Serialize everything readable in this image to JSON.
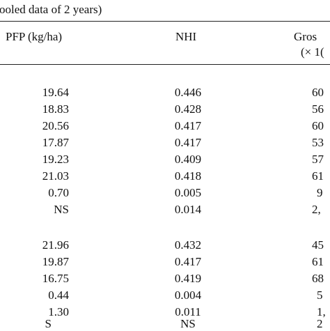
{
  "caption": "ooled data of 2 years)",
  "headers": {
    "pfp": "PFP (kg/ha)",
    "nhi": "NHI",
    "gross_line1": "Gros",
    "gross_line2": "(× 1("
  },
  "rows": [
    {
      "pfp": "19.64",
      "nhi": "0.446",
      "gross": "60"
    },
    {
      "pfp": "18.83",
      "nhi": "0.428",
      "gross": "56"
    },
    {
      "pfp": "20.56",
      "nhi": "0.417",
      "gross": "60"
    },
    {
      "pfp": "17.87",
      "nhi": "0.417",
      "gross": "53"
    },
    {
      "pfp": "19.23",
      "nhi": "0.409",
      "gross": "57"
    },
    {
      "pfp": "21.03",
      "nhi": "0.418",
      "gross": "61"
    },
    {
      "pfp": "0.70",
      "nhi": "0.005",
      "gross": "9"
    },
    {
      "pfp": "NS",
      "nhi": "0.014",
      "gross": "2,"
    },
    {
      "pfp": "21.96",
      "nhi": "0.432",
      "gross": "45"
    },
    {
      "pfp": "19.87",
      "nhi": "0.417",
      "gross": "61"
    },
    {
      "pfp": "16.75",
      "nhi": "0.419",
      "gross": "68"
    },
    {
      "pfp": "0.44",
      "nhi": "0.004",
      "gross": "5"
    },
    {
      "pfp": "1.30",
      "nhi": "0.011",
      "gross": "1,"
    },
    {
      "pfp": "S",
      "nhi": "NS",
      "gross": "2"
    }
  ]
}
